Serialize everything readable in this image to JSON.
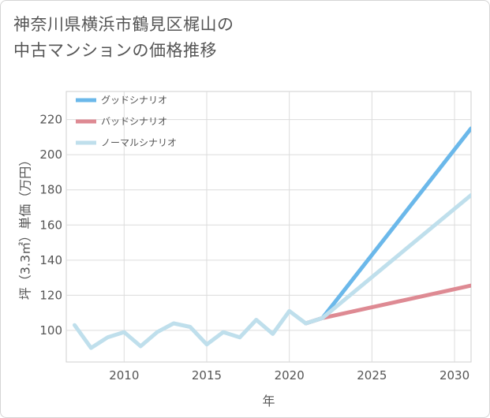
{
  "title_lines": [
    "神奈川県横浜市鶴見区梶山の",
    "中古マンションの価格推移"
  ],
  "chart_data": {
    "type": "line",
    "title": "神奈川県横浜市鶴見区梶山の中古マンションの価格推移",
    "xlabel": "年",
    "ylabel": "坪（3.3㎡）単価（万円）",
    "xlim": [
      2006.5,
      2031
    ],
    "ylim": [
      82,
      236
    ],
    "xticks": [
      2010,
      2015,
      2020,
      2025,
      2030
    ],
    "yticks": [
      100,
      120,
      140,
      160,
      180,
      200,
      220
    ],
    "grid": true,
    "legend_position": "top-left",
    "series": [
      {
        "name": "グッドシナリオ",
        "color": "#6bb8ea",
        "points": [
          [
            2021,
            104
          ],
          [
            2022,
            107
          ],
          [
            2031,
            215
          ]
        ]
      },
      {
        "name": "バッドシナリオ",
        "color": "#de8a93",
        "points": [
          [
            2021,
            104
          ],
          [
            2022,
            107
          ],
          [
            2031,
            125.5
          ]
        ]
      },
      {
        "name": "ノーマルシナリオ",
        "color": "#bfdfec",
        "points": [
          [
            2007,
            103
          ],
          [
            2008,
            90
          ],
          [
            2009,
            96
          ],
          [
            2010,
            99
          ],
          [
            2011,
            91
          ],
          [
            2012,
            99
          ],
          [
            2013,
            104
          ],
          [
            2014,
            102
          ],
          [
            2015,
            92
          ],
          [
            2016,
            99
          ],
          [
            2017,
            96
          ],
          [
            2018,
            106
          ],
          [
            2019,
            98
          ],
          [
            2020,
            111
          ],
          [
            2021,
            104
          ],
          [
            2022,
            107
          ],
          [
            2031,
            177
          ]
        ]
      }
    ]
  }
}
